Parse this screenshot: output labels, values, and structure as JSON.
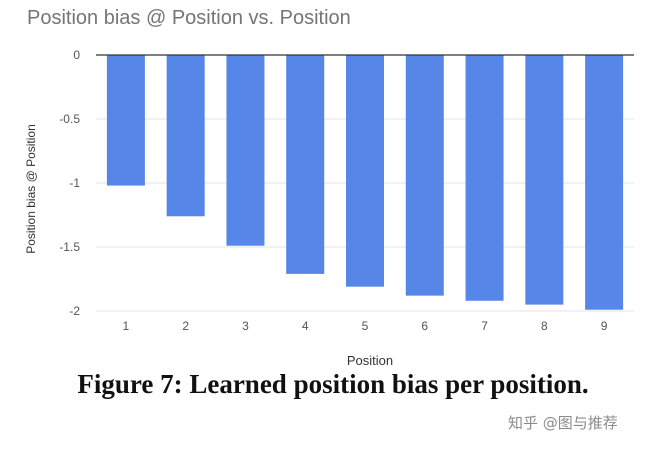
{
  "chart_data": {
    "type": "bar",
    "title": "Position bias @ Position vs. Position",
    "xlabel": "Position",
    "ylabel": "Position bias @ Position",
    "categories": [
      "1",
      "2",
      "3",
      "4",
      "5",
      "6",
      "7",
      "8",
      "9"
    ],
    "series": [
      {
        "values": [
          -1.02,
          -1.26,
          -1.49,
          -1.71,
          -1.81,
          -1.88,
          -1.92,
          -1.95,
          -1.99
        ]
      }
    ],
    "ylim": [
      -2,
      0
    ],
    "yticks": [
      0,
      -0.5,
      -1,
      -1.5,
      -2
    ],
    "ytick_labels": [
      "0",
      "-0.5",
      "-1",
      "-1.5",
      "-2"
    ],
    "grid": true,
    "bar_color": "#5586e8"
  },
  "caption": "Figure 7: Learned position bias per position.",
  "watermark": "知乎 @图与推荐"
}
